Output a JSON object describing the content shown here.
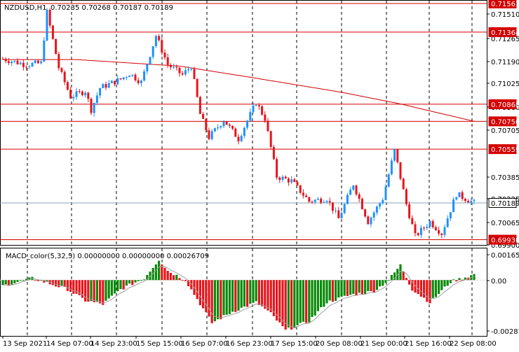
{
  "header": {
    "symbol": "NZDUSD,H1",
    "ohlc": "0.70235 0.70268 0.70187 0.70189"
  },
  "indicator": {
    "label": "MACD_color(5,32,5) 0.00000000 0.00000000 0.00026709"
  },
  "colors": {
    "bull": "#1e90ff",
    "bear": "#e8141a",
    "macd_pos": "#0a8a0a",
    "macd_neg": "#e8141a",
    "hline": "#d40000",
    "ma": "#d40000",
    "grid": "#000000",
    "signal": "#a0a0a0"
  },
  "price_axis": {
    "ticks": [
      "0.71510",
      "0.71265",
      "0.71190",
      "0.71025",
      "0.70860",
      "0.70705",
      "0.70385",
      "0.70225",
      "0.70065",
      "0.69900"
    ],
    "range": [
      0.699,
      0.7158
    ]
  },
  "levels": [
    {
      "value": "0.71561"
    },
    {
      "value": "0.71364"
    },
    {
      "value": "0.70868"
    },
    {
      "value": "0.70750"
    },
    {
      "value": "0.70559"
    },
    {
      "value": "0.70189"
    },
    {
      "value": "0.69936"
    }
  ],
  "macd_axis": {
    "ticks": [
      "0.0016533",
      "0.00",
      "-0.002875"
    ],
    "range": [
      -0.003,
      0.0017
    ]
  },
  "time_axis": [
    "13 Sep 2021",
    "14 Sep 07:00",
    "14 Sep 23:00",
    "15 Sep 15:00",
    "16 Sep 07:00",
    "16 Sep 23:00",
    "17 Sep 15:00",
    "20 Sep 08:00",
    "21 Sep 00:00",
    "21 Sep 16:00",
    "22 Sep 08:00"
  ],
  "chart_data": {
    "type": "candlestick",
    "anchors": [
      {
        "bar": 0,
        "p": 0.7118
      },
      {
        "bar": 8,
        "p": 0.7114
      },
      {
        "bar": 13,
        "p": 0.7115
      },
      {
        "bar": 15,
        "p": 0.715
      },
      {
        "bar": 19,
        "p": 0.7112
      },
      {
        "bar": 23,
        "p": 0.7092
      },
      {
        "bar": 28,
        "p": 0.7096
      },
      {
        "bar": 30,
        "p": 0.7083
      },
      {
        "bar": 33,
        "p": 0.7098
      },
      {
        "bar": 40,
        "p": 0.7104
      },
      {
        "bar": 43,
        "p": 0.7108
      },
      {
        "bar": 47,
        "p": 0.7102
      },
      {
        "bar": 52,
        "p": 0.7134
      },
      {
        "bar": 56,
        "p": 0.7114
      },
      {
        "bar": 61,
        "p": 0.7107
      },
      {
        "bar": 64,
        "p": 0.7113
      },
      {
        "bar": 67,
        "p": 0.708
      },
      {
        "bar": 70,
        "p": 0.7064
      },
      {
        "bar": 75,
        "p": 0.7076
      },
      {
        "bar": 80,
        "p": 0.7063
      },
      {
        "bar": 86,
        "p": 0.7088
      },
      {
        "bar": 89,
        "p": 0.7077
      },
      {
        "bar": 93,
        "p": 0.7037
      },
      {
        "bar": 98,
        "p": 0.7034
      },
      {
        "bar": 104,
        "p": 0.702
      },
      {
        "bar": 110,
        "p": 0.7022
      },
      {
        "bar": 114,
        "p": 0.7008
      },
      {
        "bar": 119,
        "p": 0.7032
      },
      {
        "bar": 124,
        "p": 0.7006
      },
      {
        "bar": 129,
        "p": 0.7022
      },
      {
        "bar": 133,
        "p": 0.7055
      },
      {
        "bar": 137,
        "p": 0.7018
      },
      {
        "bar": 140,
        "p": 0.6996
      },
      {
        "bar": 145,
        "p": 0.7006
      },
      {
        "bar": 149,
        "p": 0.6998
      },
      {
        "bar": 154,
        "p": 0.7025
      },
      {
        "bar": 160,
        "p": 0.7019
      }
    ],
    "ma_points": [
      {
        "bar": 0,
        "p": 0.71175
      },
      {
        "bar": 25,
        "p": 0.71175
      },
      {
        "bar": 60,
        "p": 0.7113
      },
      {
        "bar": 85,
        "p": 0.7105
      },
      {
        "bar": 115,
        "p": 0.7095
      },
      {
        "bar": 135,
        "p": 0.7087
      },
      {
        "bar": 160,
        "p": 0.7075
      }
    ],
    "macd_anchors": [
      {
        "bar": 0,
        "v": -0.0003
      },
      {
        "bar": 10,
        "v": 0.0001
      },
      {
        "bar": 22,
        "v": -0.0005
      },
      {
        "bar": 28,
        "v": -0.0011
      },
      {
        "bar": 34,
        "v": -0.0013
      },
      {
        "bar": 40,
        "v": -0.0005
      },
      {
        "bar": 48,
        "v": 0.0001
      },
      {
        "bar": 53,
        "v": 0.0011
      },
      {
        "bar": 56,
        "v": 0.0005
      },
      {
        "bar": 62,
        "v": 0.0
      },
      {
        "bar": 71,
        "v": -0.0023
      },
      {
        "bar": 78,
        "v": -0.0017
      },
      {
        "bar": 86,
        "v": -0.0012
      },
      {
        "bar": 91,
        "v": -0.0018
      },
      {
        "bar": 96,
        "v": -0.0027
      },
      {
        "bar": 104,
        "v": -0.0022
      },
      {
        "bar": 110,
        "v": -0.0012
      },
      {
        "bar": 118,
        "v": -0.0008
      },
      {
        "bar": 126,
        "v": -0.0006
      },
      {
        "bar": 131,
        "v": 0.0
      },
      {
        "bar": 135,
        "v": 0.0008
      },
      {
        "bar": 139,
        "v": -0.0005
      },
      {
        "bar": 145,
        "v": -0.0012
      },
      {
        "bar": 152,
        "v": -0.0001
      },
      {
        "bar": 160,
        "v": 0.0003
      }
    ]
  }
}
